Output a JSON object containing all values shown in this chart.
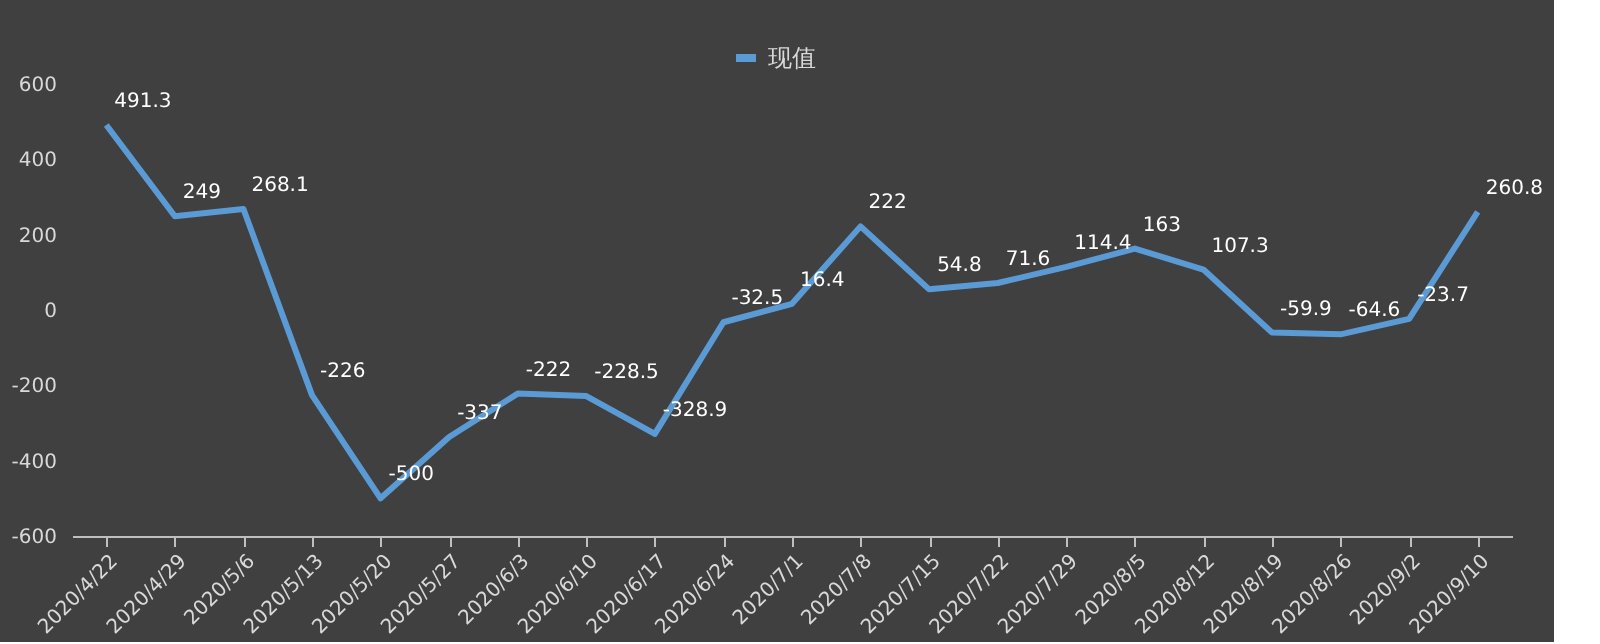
{
  "chart_data": {
    "type": "line",
    "categories": [
      "2020/4/22",
      "2020/4/29",
      "2020/5/6",
      "2020/5/13",
      "2020/5/20",
      "2020/5/27",
      "2020/6/3",
      "2020/6/10",
      "2020/6/17",
      "2020/6/24",
      "2020/7/1",
      "2020/7/8",
      "2020/7/15",
      "2020/7/22",
      "2020/7/29",
      "2020/8/5",
      "2020/8/12",
      "2020/8/19",
      "2020/8/26",
      "2020/9/2",
      "2020/9/10"
    ],
    "series": [
      {
        "name": "现值",
        "color": "#5b9bd5",
        "values": [
          491.3,
          249,
          268.1,
          -226,
          -500,
          -337,
          -222,
          -228.5,
          -328.9,
          -32.5,
          16.4,
          222,
          54.8,
          71.6,
          114.4,
          163,
          107.3,
          -59.9,
          -64.6,
          -23.7,
          260.8
        ]
      }
    ],
    "ylim": [
      -600,
      600
    ],
    "yticks": [
      -600,
      -400,
      -200,
      0,
      200,
      400,
      600
    ],
    "grid": false,
    "legend": "top",
    "data_labels": true,
    "marker": "none",
    "line_style": "solid"
  }
}
